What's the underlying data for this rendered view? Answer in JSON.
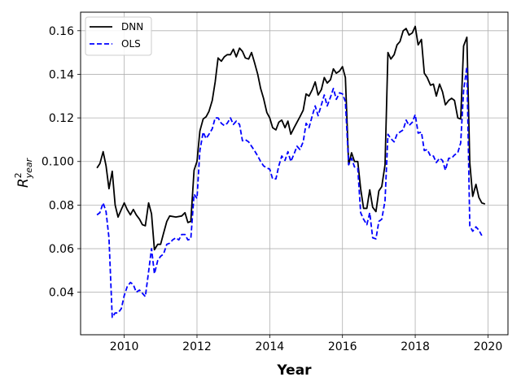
{
  "chart_data": {
    "type": "line",
    "xlabel": "Year",
    "ylabel_base": "R",
    "ylabel_sup": "2",
    "ylabel_sub": "year",
    "xlim": [
      2008.8,
      2020.55
    ],
    "ylim": [
      0.0205,
      0.1685
    ],
    "x_ticks": [
      2010,
      2012,
      2014,
      2016,
      2018,
      2020
    ],
    "x_tick_labels": [
      "2010",
      "2012",
      "2014",
      "2016",
      "2018",
      "2020"
    ],
    "y_ticks": [
      0.04,
      0.06,
      0.08,
      0.1,
      0.12,
      0.14,
      0.16
    ],
    "y_tick_labels": [
      "0.04",
      "0.06",
      "0.08",
      "0.100",
      "0.12",
      "0.14",
      "0.16"
    ],
    "grid": true,
    "legend_position": "top-left",
    "series": [
      {
        "name": "DNN",
        "color": "#000000",
        "dash": "solid",
        "points": [
          [
            2009.25,
            0.097
          ],
          [
            2009.33,
            0.099
          ],
          [
            2009.42,
            0.1045
          ],
          [
            2009.5,
            0.098
          ],
          [
            2009.58,
            0.0875
          ],
          [
            2009.67,
            0.0955
          ],
          [
            2009.75,
            0.08
          ],
          [
            2009.83,
            0.0745
          ],
          [
            2009.92,
            0.078
          ],
          [
            2010.0,
            0.081
          ],
          [
            2010.08,
            0.078
          ],
          [
            2010.17,
            0.0755
          ],
          [
            2010.25,
            0.078
          ],
          [
            2010.33,
            0.0755
          ],
          [
            2010.42,
            0.0735
          ],
          [
            2010.5,
            0.071
          ],
          [
            2010.58,
            0.0705
          ],
          [
            2010.67,
            0.081
          ],
          [
            2010.75,
            0.076
          ],
          [
            2010.83,
            0.0595
          ],
          [
            2010.92,
            0.062
          ],
          [
            2011.0,
            0.062
          ],
          [
            2011.08,
            0.067
          ],
          [
            2011.17,
            0.0725
          ],
          [
            2011.25,
            0.075
          ],
          [
            2011.42,
            0.0745
          ],
          [
            2011.58,
            0.075
          ],
          [
            2011.67,
            0.0765
          ],
          [
            2011.75,
            0.072
          ],
          [
            2011.83,
            0.0725
          ],
          [
            2011.92,
            0.096
          ],
          [
            2012.0,
            0.1
          ],
          [
            2012.08,
            0.114
          ],
          [
            2012.17,
            0.1195
          ],
          [
            2012.25,
            0.1205
          ],
          [
            2012.33,
            0.123
          ],
          [
            2012.42,
            0.128
          ],
          [
            2012.5,
            0.1365
          ],
          [
            2012.58,
            0.1475
          ],
          [
            2012.67,
            0.146
          ],
          [
            2012.75,
            0.148
          ],
          [
            2012.83,
            0.149
          ],
          [
            2012.92,
            0.149
          ],
          [
            2013.0,
            0.1515
          ],
          [
            2013.08,
            0.148
          ],
          [
            2013.17,
            0.152
          ],
          [
            2013.25,
            0.1505
          ],
          [
            2013.33,
            0.1475
          ],
          [
            2013.42,
            0.147
          ],
          [
            2013.5,
            0.15
          ],
          [
            2013.58,
            0.1455
          ],
          [
            2013.67,
            0.14
          ],
          [
            2013.75,
            0.1335
          ],
          [
            2013.83,
            0.129
          ],
          [
            2013.92,
            0.1225
          ],
          [
            2014.0,
            0.12
          ],
          [
            2014.08,
            0.1155
          ],
          [
            2014.17,
            0.1145
          ],
          [
            2014.25,
            0.118
          ],
          [
            2014.33,
            0.119
          ],
          [
            2014.42,
            0.1155
          ],
          [
            2014.5,
            0.1185
          ],
          [
            2014.58,
            0.1125
          ],
          [
            2014.67,
            0.1155
          ],
          [
            2014.75,
            0.118
          ],
          [
            2014.83,
            0.1205
          ],
          [
            2014.92,
            0.1235
          ],
          [
            2015.0,
            0.131
          ],
          [
            2015.08,
            0.13
          ],
          [
            2015.17,
            0.133
          ],
          [
            2015.25,
            0.1365
          ],
          [
            2015.33,
            0.1305
          ],
          [
            2015.42,
            0.133
          ],
          [
            2015.5,
            0.1385
          ],
          [
            2015.58,
            0.136
          ],
          [
            2015.67,
            0.1375
          ],
          [
            2015.75,
            0.1425
          ],
          [
            2015.83,
            0.1405
          ],
          [
            2015.92,
            0.1415
          ],
          [
            2016.0,
            0.1435
          ],
          [
            2016.08,
            0.1385
          ],
          [
            2016.17,
            0.0985
          ],
          [
            2016.25,
            0.104
          ],
          [
            2016.33,
            0.1
          ],
          [
            2016.42,
            0.1
          ],
          [
            2016.5,
            0.0875
          ],
          [
            2016.58,
            0.0785
          ],
          [
            2016.67,
            0.0785
          ],
          [
            2016.75,
            0.087
          ],
          [
            2016.83,
            0.079
          ],
          [
            2016.92,
            0.077
          ],
          [
            2017.0,
            0.0865
          ],
          [
            2017.08,
            0.0885
          ],
          [
            2017.17,
            0.0985
          ],
          [
            2017.25,
            0.15
          ],
          [
            2017.33,
            0.147
          ],
          [
            2017.42,
            0.149
          ],
          [
            2017.5,
            0.1535
          ],
          [
            2017.58,
            0.155
          ],
          [
            2017.67,
            0.16
          ],
          [
            2017.75,
            0.161
          ],
          [
            2017.83,
            0.158
          ],
          [
            2017.92,
            0.159
          ],
          [
            2018.0,
            0.162
          ],
          [
            2018.08,
            0.1535
          ],
          [
            2018.17,
            0.156
          ],
          [
            2018.25,
            0.1405
          ],
          [
            2018.33,
            0.1385
          ],
          [
            2018.42,
            0.135
          ],
          [
            2018.5,
            0.1355
          ],
          [
            2018.58,
            0.13
          ],
          [
            2018.67,
            0.1355
          ],
          [
            2018.75,
            0.132
          ],
          [
            2018.83,
            0.126
          ],
          [
            2018.92,
            0.128
          ],
          [
            2019.0,
            0.129
          ],
          [
            2019.08,
            0.128
          ],
          [
            2019.17,
            0.12
          ],
          [
            2019.25,
            0.1195
          ],
          [
            2019.33,
            0.153
          ],
          [
            2019.42,
            0.157
          ],
          [
            2019.5,
            0.0995
          ],
          [
            2019.58,
            0.084
          ],
          [
            2019.67,
            0.0895
          ],
          [
            2019.75,
            0.0835
          ],
          [
            2019.83,
            0.081
          ],
          [
            2019.92,
            0.0805
          ]
        ]
      },
      {
        "name": "OLS",
        "color": "#0000ff",
        "dash": "dashed",
        "points": [
          [
            2009.25,
            0.0755
          ],
          [
            2009.33,
            0.0765
          ],
          [
            2009.42,
            0.081
          ],
          [
            2009.5,
            0.077
          ],
          [
            2009.58,
            0.065
          ],
          [
            2009.67,
            0.0285
          ],
          [
            2009.75,
            0.0305
          ],
          [
            2009.83,
            0.0305
          ],
          [
            2009.92,
            0.0325
          ],
          [
            2010.0,
            0.0385
          ],
          [
            2010.08,
            0.0425
          ],
          [
            2010.17,
            0.0445
          ],
          [
            2010.25,
            0.0435
          ],
          [
            2010.33,
            0.04
          ],
          [
            2010.42,
            0.041
          ],
          [
            2010.5,
            0.0395
          ],
          [
            2010.58,
            0.038
          ],
          [
            2010.67,
            0.0495
          ],
          [
            2010.75,
            0.06
          ],
          [
            2010.83,
            0.0485
          ],
          [
            2010.92,
            0.0545
          ],
          [
            2011.0,
            0.0565
          ],
          [
            2011.08,
            0.0575
          ],
          [
            2011.17,
            0.062
          ],
          [
            2011.25,
            0.0625
          ],
          [
            2011.33,
            0.064
          ],
          [
            2011.42,
            0.065
          ],
          [
            2011.5,
            0.064
          ],
          [
            2011.58,
            0.0665
          ],
          [
            2011.67,
            0.0665
          ],
          [
            2011.75,
            0.064
          ],
          [
            2011.83,
            0.0645
          ],
          [
            2011.92,
            0.085
          ],
          [
            2012.0,
            0.083
          ],
          [
            2012.08,
            0.105
          ],
          [
            2012.17,
            0.1135
          ],
          [
            2012.25,
            0.1105
          ],
          [
            2012.33,
            0.1125
          ],
          [
            2012.42,
            0.115
          ],
          [
            2012.5,
            0.12
          ],
          [
            2012.58,
            0.12
          ],
          [
            2012.67,
            0.1175
          ],
          [
            2012.75,
            0.1165
          ],
          [
            2012.83,
            0.1175
          ],
          [
            2012.92,
            0.12
          ],
          [
            2013.0,
            0.117
          ],
          [
            2013.08,
            0.1185
          ],
          [
            2013.17,
            0.117
          ],
          [
            2013.25,
            0.1095
          ],
          [
            2013.33,
            0.11
          ],
          [
            2013.42,
            0.109
          ],
          [
            2013.5,
            0.107
          ],
          [
            2013.58,
            0.105
          ],
          [
            2013.67,
            0.1025
          ],
          [
            2013.75,
            0.1
          ],
          [
            2013.83,
            0.098
          ],
          [
            2013.92,
            0.097
          ],
          [
            2014.0,
            0.0965
          ],
          [
            2014.08,
            0.092
          ],
          [
            2014.17,
            0.092
          ],
          [
            2014.25,
            0.098
          ],
          [
            2014.33,
            0.1025
          ],
          [
            2014.42,
            0.1005
          ],
          [
            2014.5,
            0.1045
          ],
          [
            2014.58,
            0.1
          ],
          [
            2014.67,
            0.1035
          ],
          [
            2014.75,
            0.107
          ],
          [
            2014.83,
            0.1055
          ],
          [
            2014.92,
            0.109
          ],
          [
            2015.0,
            0.1175
          ],
          [
            2015.08,
            0.1155
          ],
          [
            2015.17,
            0.121
          ],
          [
            2015.25,
            0.1255
          ],
          [
            2015.33,
            0.121
          ],
          [
            2015.42,
            0.126
          ],
          [
            2015.5,
            0.1305
          ],
          [
            2015.58,
            0.1255
          ],
          [
            2015.67,
            0.1295
          ],
          [
            2015.75,
            0.1335
          ],
          [
            2015.83,
            0.1285
          ],
          [
            2015.92,
            0.1315
          ],
          [
            2016.0,
            0.131
          ],
          [
            2016.08,
            0.1275
          ],
          [
            2016.17,
            0.0985
          ],
          [
            2016.25,
            0.1015
          ],
          [
            2016.33,
            0.0975
          ],
          [
            2016.42,
            0.097
          ],
          [
            2016.5,
            0.0765
          ],
          [
            2016.58,
            0.0735
          ],
          [
            2016.67,
            0.071
          ],
          [
            2016.75,
            0.0765
          ],
          [
            2016.83,
            0.065
          ],
          [
            2016.92,
            0.0645
          ],
          [
            2017.0,
            0.0725
          ],
          [
            2017.08,
            0.0735
          ],
          [
            2017.17,
            0.082
          ],
          [
            2017.25,
            0.1125
          ],
          [
            2017.33,
            0.1105
          ],
          [
            2017.42,
            0.109
          ],
          [
            2017.5,
            0.1125
          ],
          [
            2017.58,
            0.1135
          ],
          [
            2017.67,
            0.1145
          ],
          [
            2017.75,
            0.119
          ],
          [
            2017.83,
            0.1165
          ],
          [
            2017.92,
            0.118
          ],
          [
            2018.0,
            0.1215
          ],
          [
            2018.08,
            0.113
          ],
          [
            2018.17,
            0.1135
          ],
          [
            2018.25,
            0.105
          ],
          [
            2018.33,
            0.1055
          ],
          [
            2018.42,
            0.1025
          ],
          [
            2018.5,
            0.1025
          ],
          [
            2018.58,
            0.0995
          ],
          [
            2018.67,
            0.1015
          ],
          [
            2018.75,
            0.1005
          ],
          [
            2018.83,
            0.096
          ],
          [
            2018.92,
            0.1015
          ],
          [
            2019.0,
            0.1015
          ],
          [
            2019.08,
            0.103
          ],
          [
            2019.17,
            0.104
          ],
          [
            2019.25,
            0.1085
          ],
          [
            2019.33,
            0.1325
          ],
          [
            2019.42,
            0.1435
          ],
          [
            2019.5,
            0.0705
          ],
          [
            2019.58,
            0.068
          ],
          [
            2019.67,
            0.07
          ],
          [
            2019.75,
            0.0685
          ],
          [
            2019.83,
            0.066
          ]
        ]
      }
    ]
  }
}
